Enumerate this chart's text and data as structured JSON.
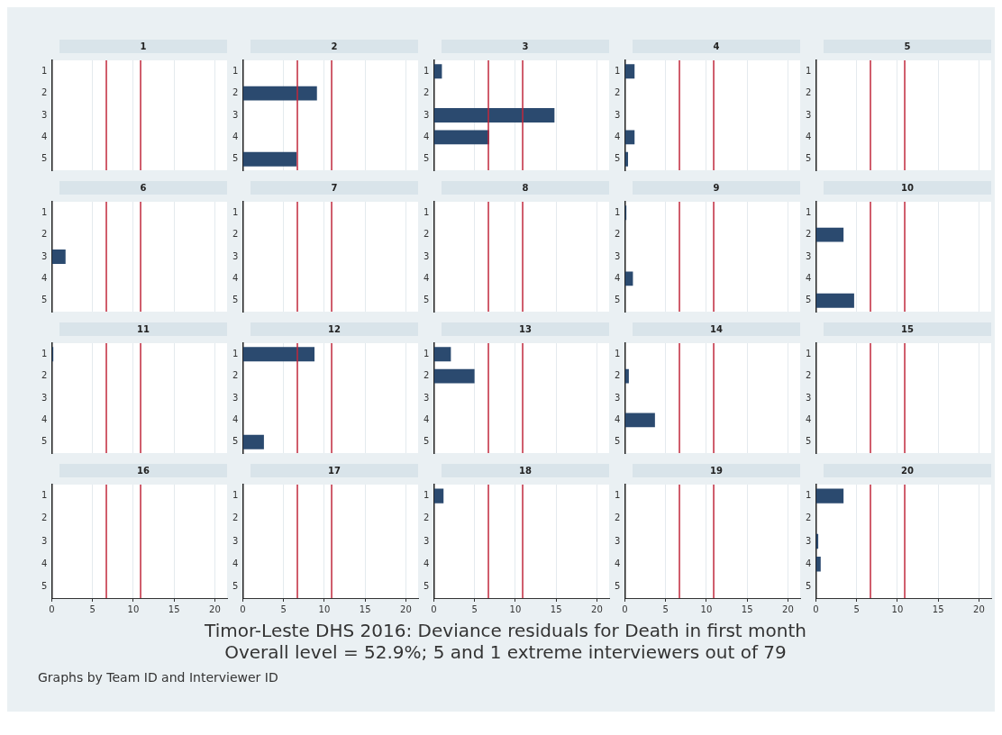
{
  "chart_data": [
    {
      "type": "bar",
      "orientation": "horizontal",
      "title": "1",
      "categories": [
        "1",
        "2",
        "3",
        "4",
        "5"
      ],
      "values": [
        null,
        null,
        null,
        null,
        null
      ],
      "color": "#2b4a6f",
      "xlim": [
        0,
        21.5
      ],
      "xticks": [
        0,
        5,
        10,
        15,
        20
      ],
      "grid": "x",
      "tick_labels": "y",
      "ref_lines": [
        {
          "axis": "x",
          "value": 6.7,
          "color": "#c0283c"
        },
        {
          "axis": "x",
          "value": 10.9,
          "color": "#c0283c"
        }
      ]
    },
    {
      "type": "bar",
      "orientation": "horizontal",
      "title": "2",
      "categories": [
        "1",
        "2",
        "3",
        "4",
        "5"
      ],
      "values": [
        null,
        9.1,
        null,
        null,
        6.6
      ],
      "color": "#2b4a6f",
      "xlim": [
        0,
        21.5
      ],
      "xticks": [
        0,
        5,
        10,
        15,
        20
      ],
      "grid": "x",
      "tick_labels": "y",
      "ref_lines": [
        {
          "axis": "x",
          "value": 6.7,
          "color": "#c0283c"
        },
        {
          "axis": "x",
          "value": 10.9,
          "color": "#c0283c"
        }
      ]
    },
    {
      "type": "bar",
      "orientation": "horizontal",
      "title": "3",
      "categories": [
        "1",
        "2",
        "3",
        "4",
        "5"
      ],
      "values": [
        1.0,
        null,
        14.8,
        6.8,
        null
      ],
      "color": "#2b4a6f",
      "xlim": [
        0,
        21.5
      ],
      "xticks": [
        0,
        5,
        10,
        15,
        20
      ],
      "grid": "x",
      "tick_labels": "y",
      "ref_lines": [
        {
          "axis": "x",
          "value": 6.7,
          "color": "#c0283c"
        },
        {
          "axis": "x",
          "value": 10.9,
          "color": "#c0283c"
        }
      ]
    },
    {
      "type": "bar",
      "orientation": "horizontal",
      "title": "4",
      "categories": [
        "1",
        "2",
        "3",
        "4",
        "5"
      ],
      "values": [
        1.2,
        null,
        null,
        1.2,
        0.4
      ],
      "color": "#2b4a6f",
      "xlim": [
        0,
        21.5
      ],
      "xticks": [
        0,
        5,
        10,
        15,
        20
      ],
      "grid": "x",
      "tick_labels": "y",
      "ref_lines": [
        {
          "axis": "x",
          "value": 6.7,
          "color": "#c0283c"
        },
        {
          "axis": "x",
          "value": 10.9,
          "color": "#c0283c"
        }
      ]
    },
    {
      "type": "bar",
      "orientation": "horizontal",
      "title": "5",
      "categories": [
        "1",
        "2",
        "3",
        "4",
        "5"
      ],
      "values": [
        null,
        null,
        null,
        null,
        null
      ],
      "color": "#2b4a6f",
      "xlim": [
        0,
        21.5
      ],
      "xticks": [
        0,
        5,
        10,
        15,
        20
      ],
      "grid": "x",
      "tick_labels": "y",
      "ref_lines": [
        {
          "axis": "x",
          "value": 6.7,
          "color": "#c0283c"
        },
        {
          "axis": "x",
          "value": 10.9,
          "color": "#c0283c"
        }
      ]
    },
    {
      "type": "bar",
      "orientation": "horizontal",
      "title": "6",
      "categories": [
        "1",
        "2",
        "3",
        "4",
        "5"
      ],
      "values": [
        null,
        null,
        1.7,
        null,
        null
      ],
      "color": "#2b4a6f",
      "xlim": [
        0,
        21.5
      ],
      "xticks": [
        0,
        5,
        10,
        15,
        20
      ],
      "grid": "x",
      "tick_labels": "y",
      "ref_lines": [
        {
          "axis": "x",
          "value": 6.7,
          "color": "#c0283c"
        },
        {
          "axis": "x",
          "value": 10.9,
          "color": "#c0283c"
        }
      ]
    },
    {
      "type": "bar",
      "orientation": "horizontal",
      "title": "7",
      "categories": [
        "1",
        "2",
        "3",
        "4",
        "5"
      ],
      "values": [
        null,
        null,
        null,
        null,
        null
      ],
      "color": "#2b4a6f",
      "xlim": [
        0,
        21.5
      ],
      "xticks": [
        0,
        5,
        10,
        15,
        20
      ],
      "grid": "x",
      "tick_labels": "y",
      "ref_lines": [
        {
          "axis": "x",
          "value": 6.7,
          "color": "#c0283c"
        },
        {
          "axis": "x",
          "value": 10.9,
          "color": "#c0283c"
        }
      ]
    },
    {
      "type": "bar",
      "orientation": "horizontal",
      "title": "8",
      "categories": [
        "1",
        "2",
        "3",
        "4",
        "5"
      ],
      "values": [
        null,
        null,
        null,
        null,
        null
      ],
      "color": "#2b4a6f",
      "xlim": [
        0,
        21.5
      ],
      "xticks": [
        0,
        5,
        10,
        15,
        20
      ],
      "grid": "x",
      "tick_labels": "y",
      "ref_lines": [
        {
          "axis": "x",
          "value": 6.7,
          "color": "#c0283c"
        },
        {
          "axis": "x",
          "value": 10.9,
          "color": "#c0283c"
        }
      ]
    },
    {
      "type": "bar",
      "orientation": "horizontal",
      "title": "9",
      "categories": [
        "1",
        "2",
        "3",
        "4",
        "5"
      ],
      "values": [
        0.2,
        null,
        null,
        1.0,
        null
      ],
      "color": "#2b4a6f",
      "xlim": [
        0,
        21.5
      ],
      "xticks": [
        0,
        5,
        10,
        15,
        20
      ],
      "grid": "x",
      "tick_labels": "y",
      "ref_lines": [
        {
          "axis": "x",
          "value": 6.7,
          "color": "#c0283c"
        },
        {
          "axis": "x",
          "value": 10.9,
          "color": "#c0283c"
        }
      ]
    },
    {
      "type": "bar",
      "orientation": "horizontal",
      "title": "10",
      "categories": [
        "1",
        "2",
        "3",
        "4",
        "5"
      ],
      "values": [
        null,
        3.4,
        null,
        null,
        4.7
      ],
      "color": "#2b4a6f",
      "xlim": [
        0,
        21.5
      ],
      "xticks": [
        0,
        5,
        10,
        15,
        20
      ],
      "grid": "x",
      "tick_labels": "y",
      "ref_lines": [
        {
          "axis": "x",
          "value": 6.7,
          "color": "#c0283c"
        },
        {
          "axis": "x",
          "value": 10.9,
          "color": "#c0283c"
        }
      ]
    },
    {
      "type": "bar",
      "orientation": "horizontal",
      "title": "11",
      "categories": [
        "1",
        "2",
        "3",
        "4",
        "5"
      ],
      "values": [
        0.2,
        null,
        null,
        null,
        null
      ],
      "color": "#2b4a6f",
      "xlim": [
        0,
        21.5
      ],
      "xticks": [
        0,
        5,
        10,
        15,
        20
      ],
      "grid": "x",
      "tick_labels": "y",
      "ref_lines": [
        {
          "axis": "x",
          "value": 6.7,
          "color": "#c0283c"
        },
        {
          "axis": "x",
          "value": 10.9,
          "color": "#c0283c"
        }
      ]
    },
    {
      "type": "bar",
      "orientation": "horizontal",
      "title": "12",
      "categories": [
        "1",
        "2",
        "3",
        "4",
        "5"
      ],
      "values": [
        8.8,
        null,
        null,
        null,
        2.6
      ],
      "color": "#2b4a6f",
      "xlim": [
        0,
        21.5
      ],
      "xticks": [
        0,
        5,
        10,
        15,
        20
      ],
      "grid": "x",
      "tick_labels": "y",
      "ref_lines": [
        {
          "axis": "x",
          "value": 6.7,
          "color": "#c0283c"
        },
        {
          "axis": "x",
          "value": 10.9,
          "color": "#c0283c"
        }
      ]
    },
    {
      "type": "bar",
      "orientation": "horizontal",
      "title": "13",
      "categories": [
        "1",
        "2",
        "3",
        "4",
        "5"
      ],
      "values": [
        2.1,
        5.0,
        null,
        null,
        null
      ],
      "color": "#2b4a6f",
      "xlim": [
        0,
        21.5
      ],
      "xticks": [
        0,
        5,
        10,
        15,
        20
      ],
      "grid": "x",
      "tick_labels": "y",
      "ref_lines": [
        {
          "axis": "x",
          "value": 6.7,
          "color": "#c0283c"
        },
        {
          "axis": "x",
          "value": 10.9,
          "color": "#c0283c"
        }
      ]
    },
    {
      "type": "bar",
      "orientation": "horizontal",
      "title": "14",
      "categories": [
        "1",
        "2",
        "3",
        "4",
        "5"
      ],
      "values": [
        null,
        0.5,
        null,
        3.7,
        null
      ],
      "color": "#2b4a6f",
      "xlim": [
        0,
        21.5
      ],
      "xticks": [
        0,
        5,
        10,
        15,
        20
      ],
      "grid": "x",
      "tick_labels": "y",
      "ref_lines": [
        {
          "axis": "x",
          "value": 6.7,
          "color": "#c0283c"
        },
        {
          "axis": "x",
          "value": 10.9,
          "color": "#c0283c"
        }
      ]
    },
    {
      "type": "bar",
      "orientation": "horizontal",
      "title": "15",
      "categories": [
        "1",
        "2",
        "3",
        "4",
        "5"
      ],
      "values": [
        null,
        null,
        null,
        null,
        null
      ],
      "color": "#2b4a6f",
      "xlim": [
        0,
        21.5
      ],
      "xticks": [
        0,
        5,
        10,
        15,
        20
      ],
      "grid": "x",
      "tick_labels": "y",
      "ref_lines": [
        {
          "axis": "x",
          "value": 6.7,
          "color": "#c0283c"
        },
        {
          "axis": "x",
          "value": 10.9,
          "color": "#c0283c"
        }
      ]
    },
    {
      "type": "bar",
      "orientation": "horizontal",
      "title": "16",
      "categories": [
        "1",
        "2",
        "3",
        "4",
        "5"
      ],
      "values": [
        null,
        null,
        null,
        null,
        null
      ],
      "color": "#2b4a6f",
      "xlim": [
        0,
        21.5
      ],
      "xticks": [
        0,
        5,
        10,
        15,
        20
      ],
      "grid": "x",
      "ref_lines": [
        {
          "axis": "x",
          "value": 6.7,
          "color": "#c0283c"
        },
        {
          "axis": "x",
          "value": 10.9,
          "color": "#c0283c"
        }
      ]
    },
    {
      "type": "bar",
      "orientation": "horizontal",
      "title": "17",
      "categories": [
        "1",
        "2",
        "3",
        "4",
        "5"
      ],
      "values": [
        null,
        null,
        null,
        null,
        null
      ],
      "color": "#2b4a6f",
      "xlim": [
        0,
        21.5
      ],
      "xticks": [
        0,
        5,
        10,
        15,
        20
      ],
      "grid": "x",
      "ref_lines": [
        {
          "axis": "x",
          "value": 6.7,
          "color": "#c0283c"
        },
        {
          "axis": "x",
          "value": 10.9,
          "color": "#c0283c"
        }
      ]
    },
    {
      "type": "bar",
      "orientation": "horizontal",
      "title": "18",
      "categories": [
        "1",
        "2",
        "3",
        "4",
        "5"
      ],
      "values": [
        1.2,
        null,
        null,
        null,
        null
      ],
      "color": "#2b4a6f",
      "xlim": [
        0,
        21.5
      ],
      "xticks": [
        0,
        5,
        10,
        15,
        20
      ],
      "grid": "x",
      "ref_lines": [
        {
          "axis": "x",
          "value": 6.7,
          "color": "#c0283c"
        },
        {
          "axis": "x",
          "value": 10.9,
          "color": "#c0283c"
        }
      ]
    },
    {
      "type": "bar",
      "orientation": "horizontal",
      "title": "19",
      "categories": [
        "1",
        "2",
        "3",
        "4",
        "5"
      ],
      "values": [
        null,
        null,
        null,
        null,
        null
      ],
      "color": "#2b4a6f",
      "xlim": [
        0,
        21.5
      ],
      "xticks": [
        0,
        5,
        10,
        15,
        20
      ],
      "grid": "x",
      "ref_lines": [
        {
          "axis": "x",
          "value": 6.7,
          "color": "#c0283c"
        },
        {
          "axis": "x",
          "value": 10.9,
          "color": "#c0283c"
        }
      ]
    },
    {
      "type": "bar",
      "orientation": "horizontal",
      "title": "20",
      "categories": [
        "1",
        "2",
        "3",
        "4",
        "5"
      ],
      "values": [
        3.4,
        null,
        0.3,
        0.6,
        null
      ],
      "color": "#2b4a6f",
      "xlim": [
        0,
        21.5
      ],
      "xticks": [
        0,
        5,
        10,
        15,
        20
      ],
      "grid": "x",
      "ref_lines": [
        {
          "axis": "x",
          "value": 6.7,
          "color": "#c0283c"
        },
        {
          "axis": "x",
          "value": 10.9,
          "color": "#c0283c"
        }
      ]
    },
    {
      "type": "other",
      "title": "Timor-Leste DHS 2016: Deviance residuals for Death in first month",
      "subtitle": "Overall level = 52.9%; 5 and 1 extreme interviewers out of 79",
      "annotations": [
        "Graphs by Team ID and Interviewer ID"
      ]
    }
  ]
}
